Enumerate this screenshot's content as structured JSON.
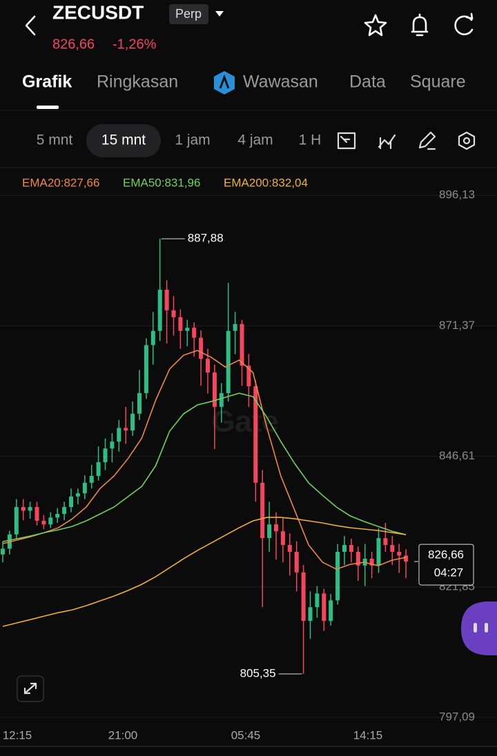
{
  "header": {
    "symbol": "ZECUSDT",
    "badge": "Perp",
    "price": "826,66",
    "change": "-1,26%"
  },
  "tabs": [
    "Grafik",
    "Ringkasan",
    "Wawasan",
    "Data",
    "Square"
  ],
  "timeframes": [
    "5 mnt",
    "15 mnt",
    "1 jam",
    "4 jam",
    "1 H"
  ],
  "chart_data": {
    "type": "candlestick",
    "watermark": "Gate",
    "grid": true,
    "up_color": "#2ebd85",
    "down_color": "#f6465d",
    "ylim": [
      795.8,
      901.1
    ],
    "yticks": [
      {
        "value": 896.13,
        "label": "896,13"
      },
      {
        "value": 871.37,
        "label": "871,37"
      },
      {
        "value": 846.61,
        "label": "846,61"
      },
      {
        "value": 821.85,
        "label": "821,85"
      },
      {
        "value": 797.09,
        "label": "797,09"
      }
    ],
    "xticks": [
      "12:15",
      "21:00",
      "05:45",
      "14:15"
    ],
    "candles": [
      [
        828.0,
        830.5,
        826.5,
        829.1
      ],
      [
        829.1,
        832.5,
        828.0,
        831.8
      ],
      [
        831.8,
        838.5,
        831.0,
        837.0
      ],
      [
        837.0,
        838.5,
        834.5,
        836.3
      ],
      [
        836.3,
        838.0,
        834.8,
        837.0
      ],
      [
        837.0,
        838.0,
        833.5,
        834.4
      ],
      [
        834.4,
        835.5,
        832.8,
        833.7
      ],
      [
        833.7,
        836.0,
        833.0,
        835.0
      ],
      [
        835.0,
        836.8,
        834.0,
        835.7
      ],
      [
        835.7,
        838.0,
        834.5,
        837.0
      ],
      [
        837.0,
        840.5,
        836.0,
        839.0
      ],
      [
        839.0,
        840.5,
        837.5,
        839.6
      ],
      [
        839.6,
        843.0,
        838.5,
        841.6
      ],
      [
        841.6,
        845.0,
        840.5,
        842.9
      ],
      [
        842.9,
        848.5,
        842.0,
        845.5
      ],
      [
        845.5,
        850.0,
        844.0,
        848.1
      ],
      [
        848.1,
        851.0,
        845.5,
        849.4
      ],
      [
        849.4,
        853.5,
        847.5,
        852.0
      ],
      [
        852.0,
        856.0,
        849.0,
        851.5
      ],
      [
        851.5,
        857.0,
        850.5,
        854.7
      ],
      [
        854.7,
        863.0,
        853.5,
        858.6
      ],
      [
        858.6,
        869.0,
        857.5,
        867.7
      ],
      [
        867.7,
        874.0,
        864.0,
        870.4
      ],
      [
        870.4,
        887.88,
        868.5,
        878.2
      ],
      [
        878.2,
        880.0,
        868.0,
        874.3
      ],
      [
        874.3,
        877.0,
        869.5,
        873.0
      ],
      [
        873.0,
        874.5,
        867.0,
        870.4
      ],
      [
        870.4,
        872.5,
        867.5,
        871.0
      ],
      [
        871.0,
        872.0,
        865.5,
        869.1
      ],
      [
        869.1,
        870.5,
        860.0,
        865.1
      ],
      [
        865.1,
        867.0,
        858.5,
        862.5
      ],
      [
        862.5,
        864.0,
        848.0,
        856.0
      ],
      [
        856.0,
        860.5,
        853.0,
        858.6
      ],
      [
        858.6,
        879.5,
        857.0,
        870.4
      ],
      [
        870.4,
        874.0,
        866.0,
        871.7
      ],
      [
        871.7,
        872.5,
        860.0,
        863.8
      ],
      [
        863.8,
        866.0,
        856.0,
        859.9
      ],
      [
        859.9,
        861.0,
        838.0,
        841.6
      ],
      [
        841.6,
        844.0,
        818.0,
        831.1
      ],
      [
        831.1,
        838.0,
        828.5,
        833.7
      ],
      [
        833.7,
        836.0,
        827.0,
        832.4
      ],
      [
        832.4,
        835.0,
        826.5,
        829.8
      ],
      [
        829.8,
        832.0,
        824.0,
        828.5
      ],
      [
        828.5,
        830.5,
        821.0,
        824.6
      ],
      [
        824.6,
        826.0,
        805.35,
        815.4
      ],
      [
        815.4,
        821.0,
        812.0,
        818.0
      ],
      [
        818.0,
        822.0,
        816.0,
        820.6
      ],
      [
        820.6,
        821.5,
        813.5,
        815.4
      ],
      [
        815.4,
        820.5,
        814.5,
        819.3
      ],
      [
        819.3,
        830.0,
        818.5,
        828.5
      ],
      [
        828.5,
        831.5,
        826.0,
        829.8
      ],
      [
        829.8,
        831.0,
        826.5,
        828.5
      ],
      [
        828.5,
        829.5,
        823.0,
        825.9
      ],
      [
        825.9,
        830.0,
        822.0,
        827.2
      ],
      [
        827.2,
        828.5,
        823.5,
        825.9
      ],
      [
        825.9,
        833.0,
        824.5,
        831.1
      ],
      [
        831.1,
        834.0,
        828.5,
        829.8
      ],
      [
        829.8,
        831.5,
        826.0,
        828.5
      ],
      [
        828.5,
        830.0,
        824.5,
        827.8
      ],
      [
        827.8,
        829.0,
        823.5,
        826.66
      ]
    ],
    "series": [
      {
        "name": "EMA20:827,66",
        "color": "#f0883e",
        "values": [
          830.06,
          830.71,
          831.36,
          832.15,
          833.07,
          834.77,
          836.99,
          840.52,
          842.88,
          846.15,
          850.07,
          857.27,
          863.16,
          865.78,
          866.69,
          865.38,
          863.55,
          864.86,
          862.5,
          852.04,
          842.88,
          836.34,
          829.8,
          826.52,
          825.21,
          826.13,
          826.52,
          825.87,
          826.92,
          827.44
        ]
      },
      {
        "name": "EMA50:831,96",
        "color": "#6fd35a",
        "values": [
          830.45,
          830.97,
          831.5,
          832.15,
          832.67,
          833.33,
          834.37,
          835.68,
          836.99,
          838.95,
          840.91,
          844.84,
          851.38,
          854.66,
          856.36,
          857.01,
          857.8,
          858.58,
          857.93,
          854.0,
          849.42,
          845.23,
          841.57,
          839.22,
          836.99,
          835.29,
          834.24,
          833.33,
          832.41,
          831.76
        ]
      },
      {
        "name": "EMA200:832,04",
        "color": "#f0b030",
        "values": [
          814.36,
          815.01,
          815.66,
          816.32,
          816.97,
          817.5,
          818.28,
          819.2,
          820.11,
          821.16,
          822.34,
          823.78,
          825.48,
          827.18,
          828.75,
          830.19,
          831.63,
          833.07,
          834.37,
          835.03,
          835.03,
          834.77,
          834.37,
          833.98,
          833.46,
          833.07,
          832.8,
          832.54,
          832.15,
          831.76
        ]
      }
    ],
    "annotations": [
      {
        "value": 887.88,
        "label": "887,88"
      },
      {
        "value": 805.35,
        "label": "805,35"
      }
    ],
    "last": {
      "value": 826.66,
      "label": "826,66"
    },
    "countdown": "04:27"
  }
}
